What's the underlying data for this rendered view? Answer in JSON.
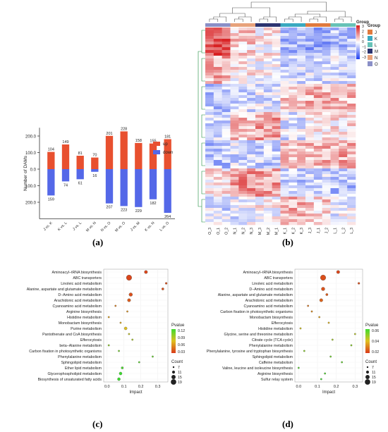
{
  "panel_labels": {
    "a": "(a)",
    "b": "(b)",
    "c": "(c)",
    "d": "(d)"
  },
  "colors": {
    "up": "#e8502f",
    "down": "#5468e8",
    "pval_low": "#d93a1a",
    "pval_mid": "#e0c020",
    "pval_high": "#3ddc2f"
  },
  "chart_data": [
    {
      "id": "a",
      "type": "bar",
      "categories": [
        "J vs. K",
        "K vs. L",
        "J vs. L",
        "M vs. N",
        "N vs. O",
        "M vs. O",
        "J vs. M",
        "K vs. N",
        "L vs. O"
      ],
      "series": [
        {
          "name": "up",
          "values": [
            104,
            149,
            81,
            70,
            201,
            228,
            158,
            155,
            181
          ]
        },
        {
          "name": "down",
          "values": [
            159,
            74,
            61,
            16,
            207,
            223,
            229,
            182,
            264
          ]
        }
      ],
      "ylabel": "Number of DAMs",
      "yticks": [
        "200.0",
        "100.0",
        "0.0",
        "100.0",
        "200.0"
      ],
      "ylim": [
        -300,
        250
      ],
      "legend": "top-right"
    },
    {
      "id": "b",
      "type": "heatmap",
      "legend_title": "Group",
      "scale_ticks": [
        "3",
        "2",
        "1",
        "0",
        "−1",
        "−2",
        "−3"
      ],
      "groups": [
        {
          "name": "J",
          "color": "#e07a3e"
        },
        {
          "name": "K",
          "color": "#3aa9c0"
        },
        {
          "name": "L",
          "color": "#67c2b7"
        },
        {
          "name": "M",
          "color": "#2c3470"
        },
        {
          "name": "N",
          "color": "#e8a27b"
        },
        {
          "name": "O",
          "color": "#8a8fc7"
        }
      ],
      "columns": [
        "O_3",
        "O_1",
        "O_2",
        "N_1",
        "N_2",
        "N_3",
        "M_3",
        "M_2",
        "M_1",
        "K_1",
        "K_2",
        "K_3",
        "J_3",
        "J_1",
        "J_2",
        "L_1",
        "L_2",
        "L_3"
      ],
      "column_groups": [
        "O",
        "O",
        "O",
        "N",
        "N",
        "N",
        "M",
        "M",
        "M",
        "K",
        "K",
        "K",
        "J",
        "J",
        "J",
        "L",
        "L",
        "L"
      ]
    },
    {
      "id": "c",
      "type": "scatter",
      "xlabel": "Impact",
      "xticks": [
        "0.0",
        "0.1",
        "0.2",
        "0.3"
      ],
      "xlim": [
        -0.02,
        0.36
      ],
      "legend_pvalue_title": "Pvalue",
      "legend_pvalue_ticks": [
        "0.12",
        "0.09",
        "0.06",
        "0.03"
      ],
      "legend_count_title": "Count",
      "legend_count_ticks": [
        "7",
        "11",
        "15",
        "19"
      ],
      "pathways": [
        {
          "name": "Aminoacyl−tRNA biosynthesis",
          "impact": 0.23,
          "pvalue": 0.005,
          "count": 12
        },
        {
          "name": "ABC transporters",
          "impact": 0.13,
          "pvalue": 0.005,
          "count": 19
        },
        {
          "name": "Linoleic acid metabolism",
          "impact": 0.35,
          "pvalue": 0.01,
          "count": 8
        },
        {
          "name": "Alanine, aspartate and glutamate metabolism",
          "impact": 0.33,
          "pvalue": 0.01,
          "count": 9
        },
        {
          "name": "D−Amino acid metabolism",
          "impact": 0.14,
          "pvalue": 0.01,
          "count": 13
        },
        {
          "name": "Arachidonic acid metabolism",
          "impact": 0.13,
          "pvalue": 0.015,
          "count": 12
        },
        {
          "name": "Cyanoamino acid metabolism",
          "impact": 0.05,
          "pvalue": 0.03,
          "count": 7
        },
        {
          "name": "Arginine biosynthesis",
          "impact": 0.12,
          "pvalue": 0.04,
          "count": 7
        },
        {
          "name": "Histidine metabolism",
          "impact": 0.01,
          "pvalue": 0.045,
          "count": 7
        },
        {
          "name": "Monobactam biosynthesis",
          "impact": 0.08,
          "pvalue": 0.05,
          "count": 7
        },
        {
          "name": "Purine metabolism",
          "impact": 0.11,
          "pvalue": 0.06,
          "count": 11
        },
        {
          "name": "Pantothenate and CoA biosynthesis",
          "impact": 0.13,
          "pvalue": 0.07,
          "count": 7
        },
        {
          "name": "Efferocytosis",
          "impact": 0.15,
          "pvalue": 0.08,
          "count": 7
        },
        {
          "name": "beta−Alanine metabolism",
          "impact": 0.01,
          "pvalue": 0.09,
          "count": 7
        },
        {
          "name": "Carbon fixation in photosynthetic organisms",
          "impact": 0.07,
          "pvalue": 0.1,
          "count": 7
        },
        {
          "name": "Phenylalanine metabolism",
          "impact": 0.27,
          "pvalue": 0.105,
          "count": 7
        },
        {
          "name": "Sphingolipid metabolism",
          "impact": 0.19,
          "pvalue": 0.11,
          "count": 7
        },
        {
          "name": "Ether lipid metabolism",
          "impact": 0.09,
          "pvalue": 0.115,
          "count": 9
        },
        {
          "name": "Glycerophospholipid metabolism",
          "impact": 0.08,
          "pvalue": 0.12,
          "count": 11
        },
        {
          "name": "Biosynthesis of unsaturated fatty acids",
          "impact": 0.07,
          "pvalue": 0.12,
          "count": 11
        }
      ]
    },
    {
      "id": "d",
      "type": "scatter",
      "xlabel": "Impact",
      "xticks": [
        "0.0",
        "0.1",
        "0.2",
        "0.3"
      ],
      "xlim": [
        -0.02,
        0.34
      ],
      "legend_pvalue_title": "Pvalue",
      "legend_pvalue_ticks": [
        "0.06",
        "0.04",
        "0.02"
      ],
      "legend_count_title": "Count",
      "legend_count_ticks": [
        "7",
        "11",
        "15",
        "19"
      ],
      "pathways": [
        {
          "name": "Aminoacyl−tRNA biosynthesis",
          "impact": 0.21,
          "pvalue": 0.003,
          "count": 12
        },
        {
          "name": "ABC transporters",
          "impact": 0.13,
          "pvalue": 0.005,
          "count": 19
        },
        {
          "name": "Linoleic acid metabolism",
          "impact": 0.32,
          "pvalue": 0.005,
          "count": 8
        },
        {
          "name": "D−Amino acid metabolism",
          "impact": 0.13,
          "pvalue": 0.006,
          "count": 13
        },
        {
          "name": "Alanine, aspartate and glutamate metabolism",
          "impact": 0.15,
          "pvalue": 0.008,
          "count": 9
        },
        {
          "name": "Arachidonic acid metabolism",
          "impact": 0.12,
          "pvalue": 0.01,
          "count": 12
        },
        {
          "name": "Cyanoamino acid metabolism",
          "impact": 0.05,
          "pvalue": 0.015,
          "count": 7
        },
        {
          "name": "Carbon fixation in photosynthetic organisms",
          "impact": 0.07,
          "pvalue": 0.02,
          "count": 7
        },
        {
          "name": "Monobactam biosynthesis",
          "impact": 0.11,
          "pvalue": 0.025,
          "count": 7
        },
        {
          "name": "Efferocytosis",
          "impact": 0.16,
          "pvalue": 0.03,
          "count": 7
        },
        {
          "name": "Histidine metabolism",
          "impact": 0.01,
          "pvalue": 0.035,
          "count": 7
        },
        {
          "name": "Glycine, serine and threonine metabolism",
          "impact": 0.3,
          "pvalue": 0.04,
          "count": 7
        },
        {
          "name": "Citrate cycle (TCA cycle)",
          "impact": 0.18,
          "pvalue": 0.045,
          "count": 7
        },
        {
          "name": "Phenylalanine metabolism",
          "impact": 0.28,
          "pvalue": 0.05,
          "count": 7
        },
        {
          "name": "Phenylalanine, tyrosine and tryptophan biosynthesis",
          "impact": 0.03,
          "pvalue": 0.05,
          "count": 7
        },
        {
          "name": "Sphingolipid metabolism",
          "impact": 0.17,
          "pvalue": 0.055,
          "count": 7
        },
        {
          "name": "Caffeine metabolism",
          "impact": 0.23,
          "pvalue": 0.058,
          "count": 7
        },
        {
          "name": "Valine, leucine and isoleucine biosynthesis",
          "impact": 0.0,
          "pvalue": 0.06,
          "count": 7
        },
        {
          "name": "Arginine biosynthesis",
          "impact": 0.14,
          "pvalue": 0.062,
          "count": 7
        },
        {
          "name": "Sulfur relay system",
          "impact": 0.12,
          "pvalue": 0.065,
          "count": 7
        }
      ]
    }
  ]
}
